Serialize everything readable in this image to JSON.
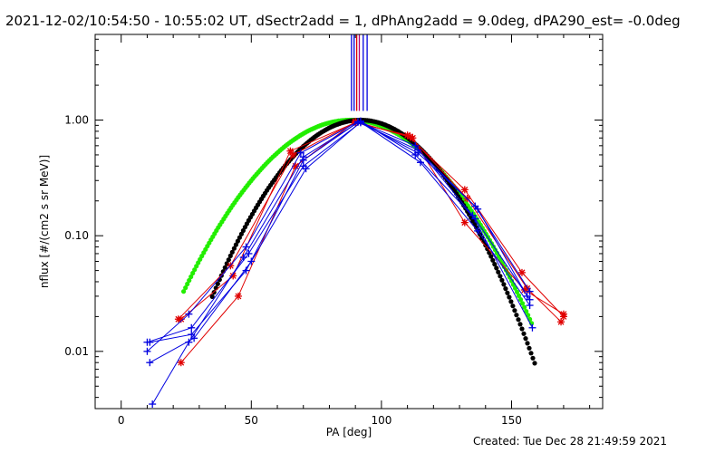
{
  "title": "2021-12-02/10:54:50 - 10:55:02 UT, dSectr2add = 1, dPhAng2add = 9.0deg, dPA290_est= -0.0deg",
  "footer": "Created: Tue Dec 28 21:49:59 2021",
  "colors": {
    "red": "#e00000",
    "blue": "#0000e0",
    "magenta": "#b00080",
    "green": "#22ee00",
    "black": "#000000",
    "axis": "#000000"
  },
  "chart_data": {
    "type": "scatter",
    "title": "2021-12-02/10:54:50 - 10:55:02 UT, dSectr2add = 1, dPhAng2add = 9.0deg, dPA290_est= -0.0deg",
    "xlabel": "PA [deg]",
    "ylabel": "nflux [#/(cm2 s sr MeV)]",
    "xlim": [
      -10,
      185
    ],
    "ylim": [
      0.0032,
      5.5
    ],
    "yscale": "log",
    "x_ticks": [
      0,
      50,
      100,
      150
    ],
    "x_tick_labels": [
      "0",
      "50",
      "100",
      "150"
    ],
    "y_ticks": [
      0.01,
      0.1,
      1.0
    ],
    "y_tick_labels": [
      "0.01",
      "0.10",
      "1.00"
    ],
    "grid": false,
    "legend": "none",
    "series": [
      {
        "color_key": "red",
        "marker": "star",
        "x": [
          23,
          43,
          65,
          90,
          110,
          132,
          154,
          170
        ],
        "y": [
          0.019,
          0.045,
          0.54,
          0.95,
          0.74,
          0.25,
          0.048,
          0.02
        ]
      },
      {
        "color_key": "red",
        "marker": "star",
        "x": [
          23,
          45,
          67,
          90,
          112,
          132,
          155,
          170
        ],
        "y": [
          0.008,
          0.03,
          0.4,
          0.97,
          0.7,
          0.13,
          0.034,
          0.021
        ]
      },
      {
        "color_key": "red",
        "marker": "star",
        "x": [
          22,
          42,
          66,
          90,
          111,
          133,
          156,
          169
        ],
        "y": [
          0.019,
          0.055,
          0.5,
          0.96,
          0.72,
          0.21,
          0.035,
          0.018
        ]
      },
      {
        "color_key": "blue",
        "marker": "plus",
        "x": [
          10,
          27,
          49,
          70,
          92,
          114,
          136,
          157
        ],
        "y": [
          0.012,
          0.016,
          0.07,
          0.4,
          0.95,
          0.52,
          0.18,
          0.033
        ]
      },
      {
        "color_key": "blue",
        "marker": "plus",
        "x": [
          11,
          28,
          50,
          71,
          92,
          115,
          137,
          157
        ],
        "y": [
          0.008,
          0.013,
          0.06,
          0.38,
          0.96,
          0.43,
          0.11,
          0.025
        ]
      },
      {
        "color_key": "blue",
        "marker": "plus",
        "x": [
          10,
          26,
          48,
          69,
          91,
          113,
          135,
          158
        ],
        "y": [
          0.01,
          0.021,
          0.08,
          0.52,
          0.97,
          0.6,
          0.15,
          0.016
        ]
      },
      {
        "color_key": "blue",
        "marker": "plus",
        "x": [
          11,
          27,
          48,
          70,
          91,
          114,
          137,
          156
        ],
        "y": [
          0.012,
          0.014,
          0.05,
          0.45,
          0.96,
          0.55,
          0.17,
          0.03
        ]
      },
      {
        "color_key": "blue",
        "marker": "plus",
        "x": [
          12,
          26,
          47,
          70,
          92,
          113,
          136,
          157
        ],
        "y": [
          0.0035,
          0.012,
          0.065,
          0.48,
          0.98,
          0.5,
          0.14,
          0.028
        ]
      },
      {
        "color_key": "green",
        "marker": "dot",
        "fit": "gaussian",
        "center": 88,
        "sigma": 24.5,
        "amplitude": 1.0,
        "x_range": [
          24,
          158
        ]
      },
      {
        "color_key": "black",
        "marker": "dot",
        "fit": "gaussian",
        "center": 92,
        "sigma": 21.5,
        "amplitude": 1.0,
        "x_range": [
          35,
          159
        ]
      }
    ],
    "vertical_lines": [
      {
        "color_key": "blue",
        "x": 88.5
      },
      {
        "color_key": "blue",
        "x": 89.5
      },
      {
        "color_key": "red",
        "x": 90.5
      },
      {
        "color_key": "magenta",
        "x": 91.5
      },
      {
        "color_key": "blue",
        "x": 93
      },
      {
        "color_key": "blue",
        "x": 94.5
      }
    ]
  }
}
